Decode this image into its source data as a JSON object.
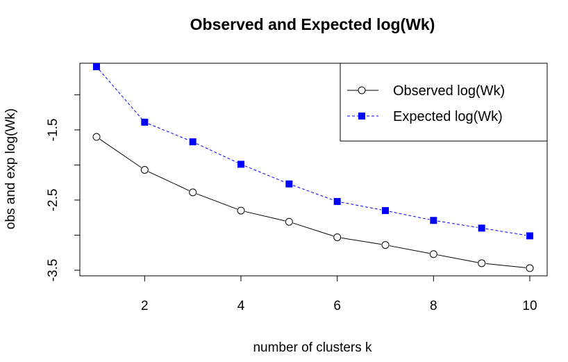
{
  "chart_data": {
    "type": "line",
    "title": "Observed and Expected log(Wk)",
    "xlabel": "number of clusters k",
    "ylabel": "obs and exp log(Wk)",
    "x": [
      1,
      2,
      3,
      4,
      5,
      6,
      7,
      8,
      9,
      10
    ],
    "xlim": [
      1,
      10
    ],
    "ylim": [
      -3.58,
      -0.55
    ],
    "xticks": [
      2,
      4,
      6,
      8,
      10
    ],
    "yticks": [
      -1.5,
      -2.5,
      -3.5
    ],
    "xtick_labels": [
      "2",
      "4",
      "6",
      "8",
      "10"
    ],
    "ytick_labels": [
      "-1.5",
      "-2.5",
      "-3.5"
    ],
    "grid": false,
    "legend_position": "top-right",
    "series": [
      {
        "name": "Observed log(Wk)",
        "values": [
          -1.6,
          -2.07,
          -2.39,
          -2.65,
          -2.81,
          -3.03,
          -3.14,
          -3.27,
          -3.4,
          -3.47
        ],
        "color": "#000000",
        "line_style": "solid",
        "marker": "open-circle"
      },
      {
        "name": "Expected log(Wk)",
        "values": [
          -0.6,
          -1.39,
          -1.67,
          -1.99,
          -2.27,
          -2.52,
          -2.65,
          -2.79,
          -2.9,
          -3.01
        ],
        "color": "#0000ff",
        "line_style": "dashed",
        "marker": "filled-square"
      }
    ]
  }
}
